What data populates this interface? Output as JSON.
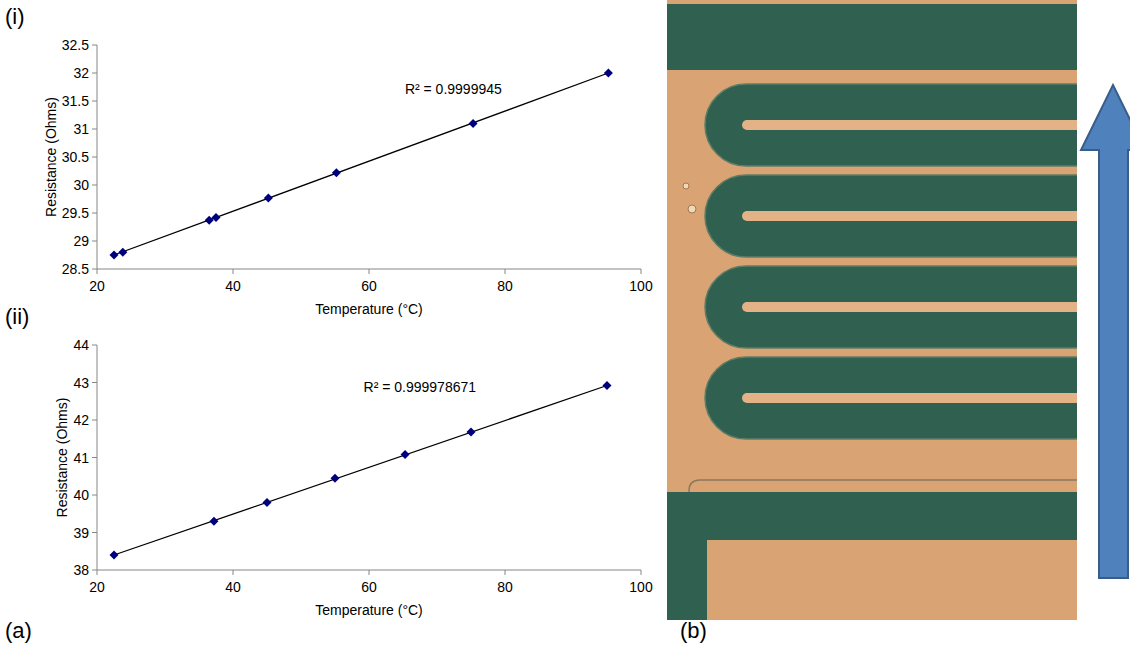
{
  "figure": {
    "panels": [
      {
        "label": "(a)"
      },
      {
        "label": "(b)"
      }
    ]
  },
  "chart_data": [
    {
      "type": "scatter",
      "title": "(i)",
      "x_label": "Temperature (°C)",
      "y_label": "Resistance (Ohms)",
      "xlim": [
        20,
        100
      ],
      "xticks": [
        20,
        40,
        60,
        80,
        100
      ],
      "ylim": [
        28.5,
        32.5
      ],
      "yticks": [
        28.5,
        29,
        29.5,
        30,
        30.5,
        31,
        31.5,
        32,
        32.5
      ],
      "grid": false,
      "annotations": [
        {
          "text": "R² = 0.9999945"
        }
      ],
      "series": [
        {
          "type": "scatter",
          "marker": "diamond",
          "color": "#00007f",
          "x": [
            22.5,
            23.8,
            36.5,
            37.5,
            45.2,
            55.2,
            75.3,
            95.2
          ],
          "values": [
            28.75,
            28.8,
            29.37,
            29.42,
            29.77,
            30.22,
            31.1,
            32.0
          ]
        },
        {
          "type": "line",
          "line_style": "solid",
          "color": "#000000",
          "x": [
            22.5,
            95.2
          ],
          "values": [
            28.75,
            32.0
          ]
        }
      ]
    },
    {
      "type": "scatter",
      "title": "(ii)",
      "x_label": "Temperature (°C)",
      "y_label": "Resistance (Ohms)",
      "xlim": [
        20,
        100
      ],
      "xticks": [
        20,
        40,
        60,
        80,
        100
      ],
      "ylim": [
        38,
        44
      ],
      "yticks": [
        38,
        39,
        40,
        41,
        42,
        43,
        44
      ],
      "grid": false,
      "annotations": [
        {
          "text": "R² = 0.999978671"
        }
      ],
      "series": [
        {
          "type": "scatter",
          "marker": "diamond",
          "color": "#00007f",
          "x": [
            22.5,
            37.2,
            45.0,
            55.0,
            65.3,
            75.0,
            95.0
          ],
          "values": [
            38.4,
            39.3,
            39.8,
            40.45,
            41.08,
            41.68,
            42.92
          ]
        },
        {
          "type": "line",
          "line_style": "solid",
          "color": "#000000",
          "x": [
            22.5,
            95.0
          ],
          "values": [
            38.4,
            42.92
          ]
        }
      ]
    }
  ]
}
